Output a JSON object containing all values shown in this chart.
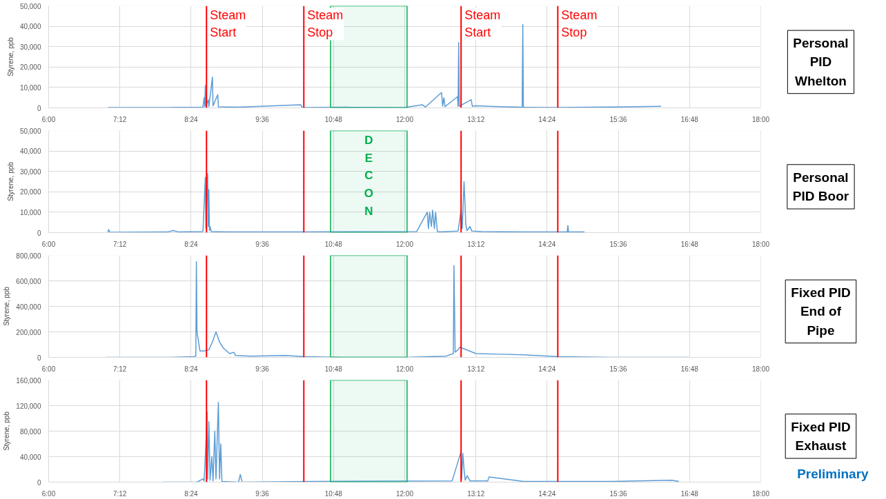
{
  "chart_data": [
    {
      "type": "line",
      "annotations": [
        "Personal PID Whelton"
      ],
      "ylabel": "Styrene, ppb",
      "xlim": [
        6,
        18
      ],
      "ylim": [
        0,
        50000
      ],
      "xticks": [
        {
          "value": 6,
          "label": "6:00"
        },
        {
          "value": 7.2,
          "label": "7:12"
        },
        {
          "value": 8.4,
          "label": "8:24"
        },
        {
          "value": 9.6,
          "label": "9:36"
        },
        {
          "value": 10.8,
          "label": "10:48"
        },
        {
          "value": 12,
          "label": "12:00"
        },
        {
          "value": 13.2,
          "label": "13:12"
        },
        {
          "value": 14.4,
          "label": "14:24"
        },
        {
          "value": 15.6,
          "label": "15:36"
        },
        {
          "value": 16.8,
          "label": "16:48"
        },
        {
          "value": 18,
          "label": "18:00"
        }
      ],
      "yticks": [
        {
          "value": 0,
          "label": "0"
        },
        {
          "value": 10000,
          "label": "10,000"
        },
        {
          "value": 20000,
          "label": "20,000"
        },
        {
          "value": 30000,
          "label": "30,000"
        },
        {
          "value": 40000,
          "label": "40,000"
        },
        {
          "value": 50000,
          "label": "50,000"
        }
      ],
      "grid": true,
      "series": [
        {
          "color": "#5b9bd5",
          "x": [
            7.0,
            8.0,
            8.6,
            8.62,
            8.63,
            8.64,
            8.65,
            8.69,
            8.7,
            8.76,
            8.77,
            8.85,
            8.86,
            9.2,
            10.25,
            10.27,
            11.0,
            12.0,
            12.3,
            12.35,
            12.62,
            12.64,
            12.66,
            12.68,
            12.89,
            12.9,
            12.91,
            12.92,
            13.12,
            13.14,
            13.2,
            13.5,
            13.98,
            13.99,
            14.0,
            14.5,
            15.5,
            16.32
          ],
          "values": [
            200,
            200,
            300,
            5000,
            500,
            11000,
            800,
            4000,
            600,
            15000,
            1000,
            6500,
            500,
            300,
            1500,
            200,
            300,
            200,
            1500,
            400,
            7500,
            800,
            5000,
            600,
            5500,
            800,
            32000,
            800,
            4000,
            800,
            1000,
            700,
            300,
            41000,
            300,
            200,
            400,
            800
          ]
        }
      ],
      "ref_lines": [
        {
          "axis": "x",
          "value": 8.66,
          "label": "Steam Start",
          "color": "#ff0000"
        },
        {
          "axis": "x",
          "value": 10.3,
          "label": "Steam Stop",
          "color": "#ff0000"
        },
        {
          "axis": "x",
          "value": 12.95,
          "label": "Steam Start",
          "color": "#ff0000"
        },
        {
          "axis": "x",
          "value": 14.58,
          "label": "Steam Stop",
          "color": "#ff0000"
        }
      ],
      "bands": [
        {
          "axis": "x",
          "from": 10.75,
          "to": 12.04,
          "color": "#00b050"
        }
      ]
    },
    {
      "type": "line",
      "annotations": [
        "Personal PID Boor"
      ],
      "ylabel": "Styrene, ppb",
      "xlim": [
        6,
        18
      ],
      "ylim": [
        0,
        50000
      ],
      "xticks": [
        {
          "value": 6,
          "label": "6:00"
        },
        {
          "value": 7.2,
          "label": "7:12"
        },
        {
          "value": 8.4,
          "label": "8:24"
        },
        {
          "value": 9.6,
          "label": "9:36"
        },
        {
          "value": 10.8,
          "label": "10:48"
        },
        {
          "value": 12,
          "label": "12:00"
        },
        {
          "value": 13.2,
          "label": "13:12"
        },
        {
          "value": 14.4,
          "label": "14:24"
        },
        {
          "value": 15.6,
          "label": "15:36"
        },
        {
          "value": 16.8,
          "label": "16:48"
        },
        {
          "value": 18,
          "label": "18:00"
        }
      ],
      "yticks": [
        {
          "value": 0,
          "label": "0"
        },
        {
          "value": 10000,
          "label": "10,000"
        },
        {
          "value": 20000,
          "label": "20,000"
        },
        {
          "value": 30000,
          "label": "30,000"
        },
        {
          "value": 40000,
          "label": "40,000"
        },
        {
          "value": 50000,
          "label": "50,000"
        }
      ],
      "grid": true,
      "series": [
        {
          "color": "#5b9bd5",
          "x": [
            7.0,
            7.01,
            7.03,
            8.0,
            8.1,
            8.2,
            8.6,
            8.64,
            8.65,
            8.68,
            8.69,
            8.7,
            8.71,
            8.72,
            8.74,
            9.0,
            10.2,
            12.2,
            12.38,
            12.4,
            12.42,
            12.45,
            12.47,
            12.5,
            12.52,
            12.55,
            12.6,
            12.9,
            12.95,
            12.97,
            13.0,
            13.03,
            13.05,
            13.1,
            13.13,
            13.3,
            14.0,
            14.74,
            14.75,
            14.76,
            15.03
          ],
          "values": [
            300,
            1500,
            200,
            300,
            1000,
            300,
            500,
            27000,
            2000,
            29000,
            3000,
            21000,
            1000,
            3000,
            500,
            300,
            300,
            500,
            10000,
            2000,
            10000,
            3000,
            11000,
            2000,
            10000,
            500,
            300,
            800,
            11000,
            2000,
            25000,
            4000,
            1000,
            3000,
            800,
            500,
            300,
            300,
            3500,
            300,
            300
          ]
        }
      ],
      "ref_lines": [
        {
          "axis": "x",
          "value": 8.66,
          "color": "#ff0000"
        },
        {
          "axis": "x",
          "value": 10.3,
          "color": "#ff0000"
        },
        {
          "axis": "x",
          "value": 12.95,
          "color": "#ff0000"
        },
        {
          "axis": "x",
          "value": 14.58,
          "color": "#ff0000"
        }
      ],
      "bands": [
        {
          "axis": "x",
          "from": 10.75,
          "to": 12.04,
          "label": "DECON",
          "color": "#00b050"
        }
      ]
    },
    {
      "type": "line",
      "annotations": [
        "Fixed PID End of Pipe"
      ],
      "ylabel": "Styrene, ppb",
      "xlim": [
        6,
        18
      ],
      "ylim": [
        0,
        800000
      ],
      "xticks": [
        {
          "value": 6,
          "label": "6:00"
        },
        {
          "value": 7.2,
          "label": "7:12"
        },
        {
          "value": 8.4,
          "label": "8:24"
        },
        {
          "value": 9.6,
          "label": "9:36"
        },
        {
          "value": 10.8,
          "label": "10:48"
        },
        {
          "value": 12,
          "label": "12:00"
        },
        {
          "value": 13.2,
          "label": "13:12"
        },
        {
          "value": 14.4,
          "label": "14:24"
        },
        {
          "value": 15.6,
          "label": "15:36"
        },
        {
          "value": 16.8,
          "label": "16:48"
        },
        {
          "value": 18,
          "label": "18:00"
        }
      ],
      "yticks": [
        {
          "value": 0,
          "label": "0"
        },
        {
          "value": 200000,
          "label": "200,000"
        },
        {
          "value": 400000,
          "label": "400,000"
        },
        {
          "value": 600000,
          "label": "600,000"
        },
        {
          "value": 800000,
          "label": "800,000"
        }
      ],
      "grid": true,
      "series": [
        {
          "color": "#5b9bd5",
          "x": [
            6.97,
            8.0,
            8.45,
            8.48,
            8.49,
            8.5,
            8.55,
            8.62,
            8.7,
            8.76,
            8.82,
            8.88,
            8.95,
            9.05,
            9.12,
            9.15,
            9.4,
            10.0,
            10.3,
            11.0,
            12.0,
            12.7,
            12.82,
            12.83,
            12.85,
            12.9,
            12.93,
            13.2,
            13.6,
            14.0,
            14.6,
            15.5,
            16.79
          ],
          "values": [
            0,
            0,
            5000,
            10000,
            750000,
            200000,
            50000,
            50000,
            60000,
            120000,
            200000,
            120000,
            70000,
            30000,
            40000,
            15000,
            10000,
            15000,
            5000,
            0,
            0,
            10000,
            30000,
            720000,
            40000,
            60000,
            80000,
            30000,
            25000,
            20000,
            5000,
            0,
            0
          ]
        }
      ],
      "ref_lines": [
        {
          "axis": "x",
          "value": 8.66,
          "color": "#ff0000"
        },
        {
          "axis": "x",
          "value": 10.3,
          "color": "#ff0000"
        },
        {
          "axis": "x",
          "value": 12.95,
          "color": "#ff0000"
        },
        {
          "axis": "x",
          "value": 14.58,
          "color": "#ff0000"
        }
      ],
      "bands": [
        {
          "axis": "x",
          "from": 10.75,
          "to": 12.04,
          "color": "#00b050"
        }
      ]
    },
    {
      "type": "line",
      "ylabel": "Styrene, ppb",
      "xlim": [
        6,
        18
      ],
      "ylim": [
        0,
        160000
      ],
      "xticks": [
        {
          "value": 6,
          "label": "6:00"
        },
        {
          "value": 7.2,
          "label": "7:12"
        },
        {
          "value": 8.4,
          "label": "8:24"
        },
        {
          "value": 9.6,
          "label": "9:36"
        },
        {
          "value": 10.8,
          "label": "10:48"
        },
        {
          "value": 12,
          "label": "12:00"
        },
        {
          "value": 13.2,
          "label": "13:12"
        },
        {
          "value": 14.4,
          "label": "14:24"
        },
        {
          "value": 15.6,
          "label": "15:36"
        },
        {
          "value": 16.8,
          "label": "16:48"
        },
        {
          "value": 18,
          "label": "18:00"
        }
      ],
      "yticks": [
        {
          "value": 0,
          "label": "0"
        },
        {
          "value": 40000,
          "label": "40,000"
        },
        {
          "value": 80000,
          "label": "80,000"
        },
        {
          "value": 120000,
          "label": "120,000"
        },
        {
          "value": 160000,
          "label": "160,000"
        }
      ],
      "grid": true,
      "series": [
        {
          "color": "#5b9bd5",
          "x": [
            7.92,
            8.5,
            8.6,
            8.62,
            8.65,
            8.67,
            8.68,
            8.7,
            8.72,
            8.75,
            8.77,
            8.8,
            8.82,
            8.86,
            8.88,
            8.9,
            8.92,
            9.2,
            9.23,
            9.26,
            10.5,
            12.8,
            12.95,
            12.96,
            12.98,
            13.0,
            13.02,
            13.05,
            13.1,
            13.4,
            13.42,
            14.0,
            15.5,
            16.5,
            16.62
          ],
          "values": [
            0,
            0,
            5000,
            2000,
            60000,
            110000,
            5000,
            95000,
            3000,
            40000,
            2000,
            80000,
            5000,
            125000,
            5000,
            60000,
            1000,
            0,
            12000,
            0,
            1000,
            2000,
            48000,
            5000,
            45000,
            20000,
            3000,
            10000,
            2000,
            2000,
            8000,
            1000,
            1000,
            3000,
            1000
          ]
        }
      ],
      "ref_lines": [
        {
          "axis": "x",
          "value": 8.66,
          "color": "#ff0000"
        },
        {
          "axis": "x",
          "value": 10.3,
          "color": "#ff0000"
        },
        {
          "axis": "x",
          "value": 12.95,
          "color": "#ff0000"
        },
        {
          "axis": "x",
          "value": 14.58,
          "color": "#ff0000"
        }
      ],
      "bands": [
        {
          "axis": "x",
          "from": 10.75,
          "to": 12.04,
          "color": "#00b050"
        }
      ],
      "annotations": [
        "Fixed PID Exhaust",
        "Preliminary"
      ]
    }
  ]
}
